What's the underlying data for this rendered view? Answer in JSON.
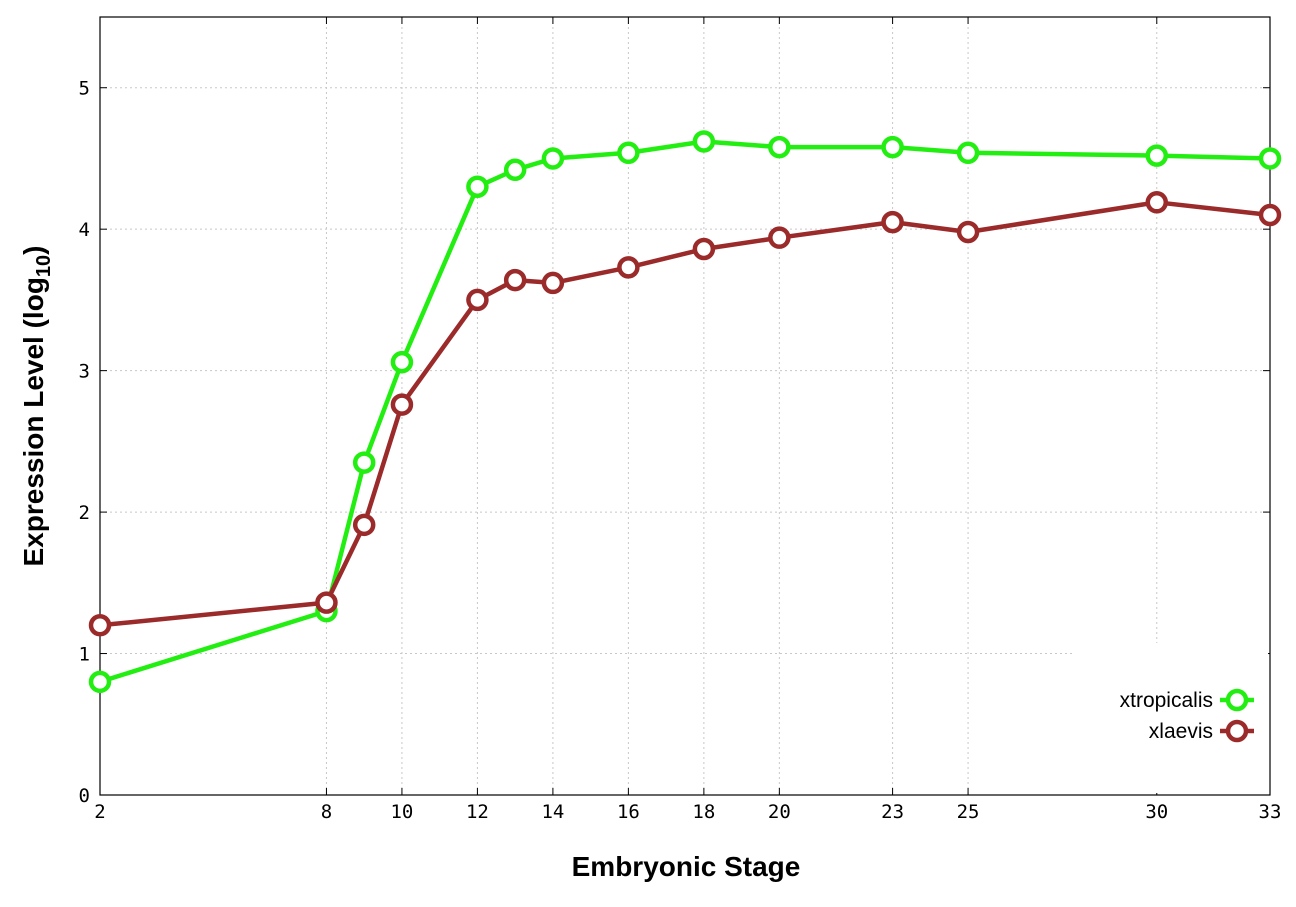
{
  "chart_data": {
    "type": "line",
    "title": "",
    "xlabel": "Embryonic Stage",
    "ylabel_main": "Expression Level (log",
    "ylabel_sub": "10",
    "ylabel_close": ")",
    "x": [
      2,
      8,
      9,
      10,
      12,
      13,
      14,
      16,
      18,
      20,
      23,
      25,
      30,
      33
    ],
    "x_ticks": [
      2,
      8,
      10,
      12,
      14,
      16,
      18,
      20,
      23,
      25,
      30,
      33
    ],
    "y_ticks": [
      0,
      1,
      2,
      3,
      4,
      5
    ],
    "xlim": [
      2,
      33
    ],
    "ylim": [
      0,
      5.5
    ],
    "grid": true,
    "legend_position": "bottom-right",
    "series": [
      {
        "name": "xtropicalis",
        "color": "#22ee11",
        "values": [
          0.8,
          1.3,
          2.35,
          3.06,
          4.3,
          4.42,
          4.5,
          4.54,
          4.62,
          4.58,
          4.58,
          4.54,
          4.52,
          4.5
        ]
      },
      {
        "name": "xlaevis",
        "color": "#9b2a2a",
        "values": [
          1.2,
          1.36,
          1.91,
          2.76,
          3.5,
          3.64,
          3.62,
          3.73,
          3.86,
          3.94,
          4.05,
          3.98,
          4.19,
          4.1
        ]
      }
    ]
  }
}
